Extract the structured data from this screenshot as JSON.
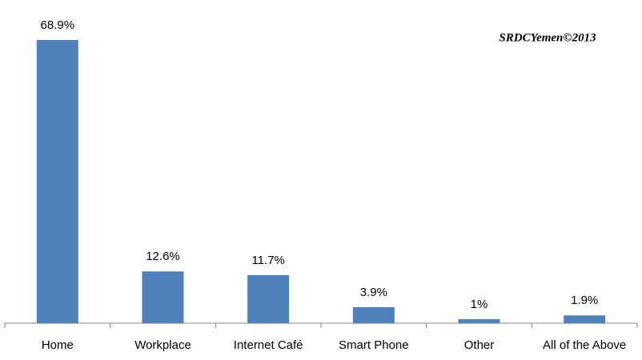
{
  "chart_data": {
    "type": "bar",
    "annotation": "SRDCYemen©2013",
    "categories": [
      "Home",
      "Workplace",
      "Internet Café",
      "Smart Phone",
      "Other",
      "All of the Above"
    ],
    "values": [
      68.9,
      12.6,
      11.7,
      3.9,
      1,
      1.9
    ],
    "value_labels": [
      "68.9%",
      "12.6%",
      "11.7%",
      "3.9%",
      "1%",
      "1.9%"
    ],
    "color": "#4f81bd"
  }
}
